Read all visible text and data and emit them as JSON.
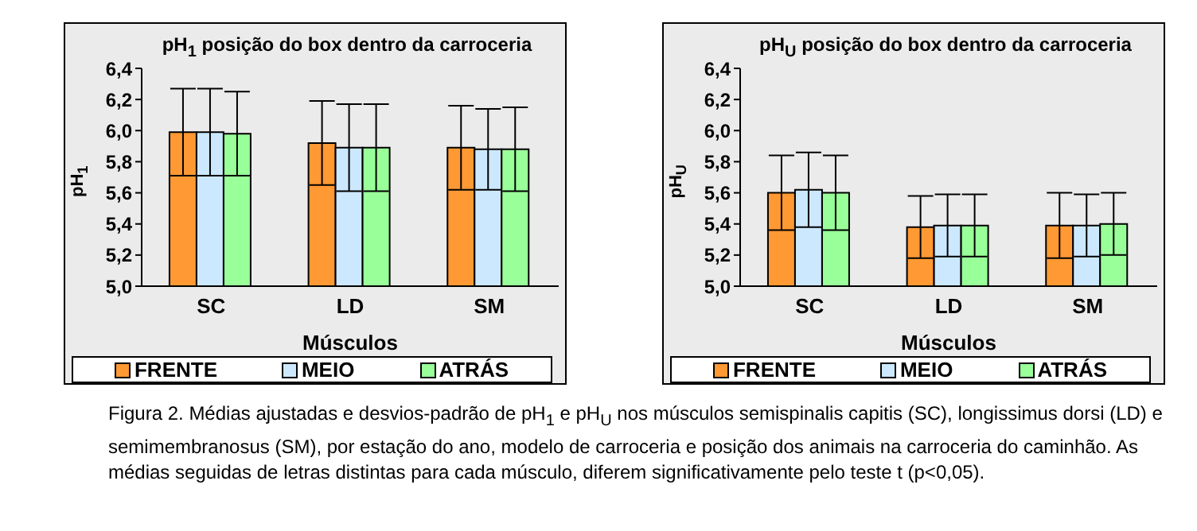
{
  "chart_data": [
    {
      "type": "bar",
      "title": "pH$_{1}$ posição do box dentro da carroceria",
      "xlabel": "Músculos",
      "ylabel": "pH$_{1}$",
      "categories": [
        "SC",
        "LD",
        "SM"
      ],
      "series": [
        {
          "name": "FRENTE",
          "color": "#ff9933",
          "values": [
            5.99,
            5.92,
            5.89
          ],
          "errors": [
            0.28,
            0.27,
            0.27
          ]
        },
        {
          "name": "MEIO",
          "color": "#cce8ff",
          "values": [
            5.99,
            5.89,
            5.88
          ],
          "errors": [
            0.28,
            0.28,
            0.26
          ]
        },
        {
          "name": "ATRÁS",
          "color": "#99ff99",
          "values": [
            5.98,
            5.89,
            5.88
          ],
          "errors": [
            0.27,
            0.28,
            0.27
          ]
        }
      ],
      "ylim": [
        5.0,
        6.4
      ],
      "yticks": [
        {
          "value": 5.0,
          "label": "5,0"
        },
        {
          "value": 5.2,
          "label": "5,2"
        },
        {
          "value": 5.4,
          "label": "5,4"
        },
        {
          "value": 5.6,
          "label": "5,6"
        },
        {
          "value": 5.8,
          "label": "5,8"
        },
        {
          "value": 6.0,
          "label": "6,0"
        },
        {
          "value": 6.2,
          "label": "6,2"
        },
        {
          "value": 6.4,
          "label": "6,4"
        }
      ],
      "grid": false,
      "legend": "bottom"
    },
    {
      "type": "bar",
      "title": "pH$_{U}$ posição do box dentro da carroceria",
      "xlabel": "Músculos",
      "ylabel": "pH$_{U}$",
      "categories": [
        "SC",
        "LD",
        "SM"
      ],
      "series": [
        {
          "name": "FRENTE",
          "color": "#ff9933",
          "values": [
            5.6,
            5.38,
            5.39
          ],
          "errors": [
            0.24,
            0.2,
            0.21
          ]
        },
        {
          "name": "MEIO",
          "color": "#cce8ff",
          "values": [
            5.62,
            5.39,
            5.39
          ],
          "errors": [
            0.24,
            0.2,
            0.2
          ]
        },
        {
          "name": "ATRÁS",
          "color": "#99ff99",
          "values": [
            5.6,
            5.39,
            5.4
          ],
          "errors": [
            0.24,
            0.2,
            0.2
          ]
        }
      ],
      "ylim": [
        5.0,
        6.4
      ],
      "yticks": [
        {
          "value": 5.0,
          "label": "5,0"
        },
        {
          "value": 5.2,
          "label": "5,2"
        },
        {
          "value": 5.4,
          "label": "5,4"
        },
        {
          "value": 5.6,
          "label": "5,6"
        },
        {
          "value": 5.8,
          "label": "5,8"
        },
        {
          "value": 6.0,
          "label": "6,0"
        },
        {
          "value": 6.2,
          "label": "6,2"
        },
        {
          "value": 6.4,
          "label": "6,4"
        }
      ],
      "grid": false,
      "legend": "bottom",
      "annotations": [
        "Figura 2. Médias ajustadas e desvios-padrão de pH$_{1}$ e pH$_{U}$ nos músculos semispinalis capitis (SC), longissimus dorsi (LD) e semimembranosus (SM), por estação do ano, modelo de carroceria e posição dos animais na carroceria do caminhão. As médias seguidas de letras distintas para cada músculo, diferem significativamente pelo teste t (p<0,05)."
      ]
    }
  ]
}
